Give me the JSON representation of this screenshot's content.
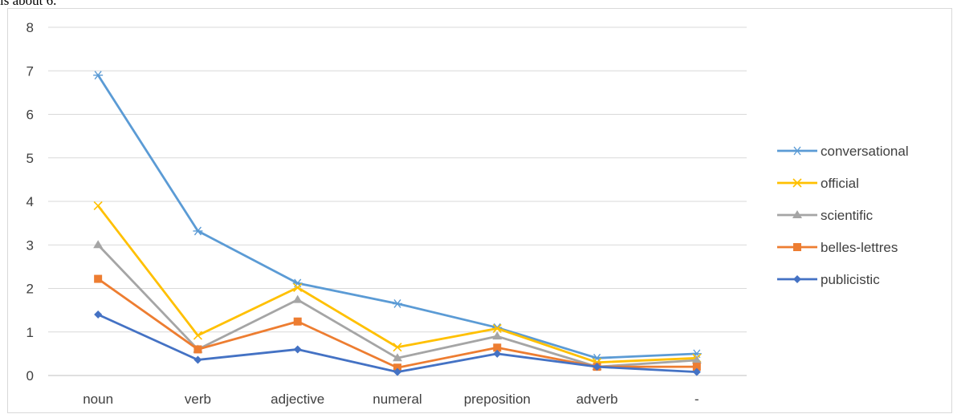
{
  "caption": "is about 6.",
  "chart_data": {
    "type": "line",
    "categories": [
      "noun",
      "verb",
      "adjective",
      "numeral",
      "preposition",
      "adverb",
      "-"
    ],
    "ylim": [
      0,
      8
    ],
    "yticks": [
      "0",
      "1",
      "2",
      "3",
      "4",
      "5",
      "6",
      "7",
      "8"
    ],
    "grid": true,
    "legend_position": "right",
    "series": [
      {
        "name": "conversational",
        "color": "#5b9bd5",
        "marker": "asterisk",
        "values": [
          6.9,
          3.32,
          2.12,
          1.65,
          1.1,
          0.4,
          0.5
        ]
      },
      {
        "name": "official",
        "color": "#ffc000",
        "marker": "x",
        "values": [
          3.9,
          0.92,
          2.02,
          0.65,
          1.08,
          0.3,
          0.4
        ]
      },
      {
        "name": "scientific",
        "color": "#a5a5a5",
        "marker": "triangle",
        "values": [
          3.0,
          0.6,
          1.74,
          0.4,
          0.9,
          0.2,
          0.35
        ]
      },
      {
        "name": "belles-lettres",
        "color": "#ed7d31",
        "marker": "square",
        "values": [
          2.22,
          0.6,
          1.24,
          0.18,
          0.64,
          0.2,
          0.2
        ]
      },
      {
        "name": "publicistic",
        "color": "#4472c4",
        "marker": "diamond",
        "values": [
          1.4,
          0.36,
          0.6,
          0.08,
          0.5,
          0.2,
          0.08
        ]
      }
    ]
  }
}
